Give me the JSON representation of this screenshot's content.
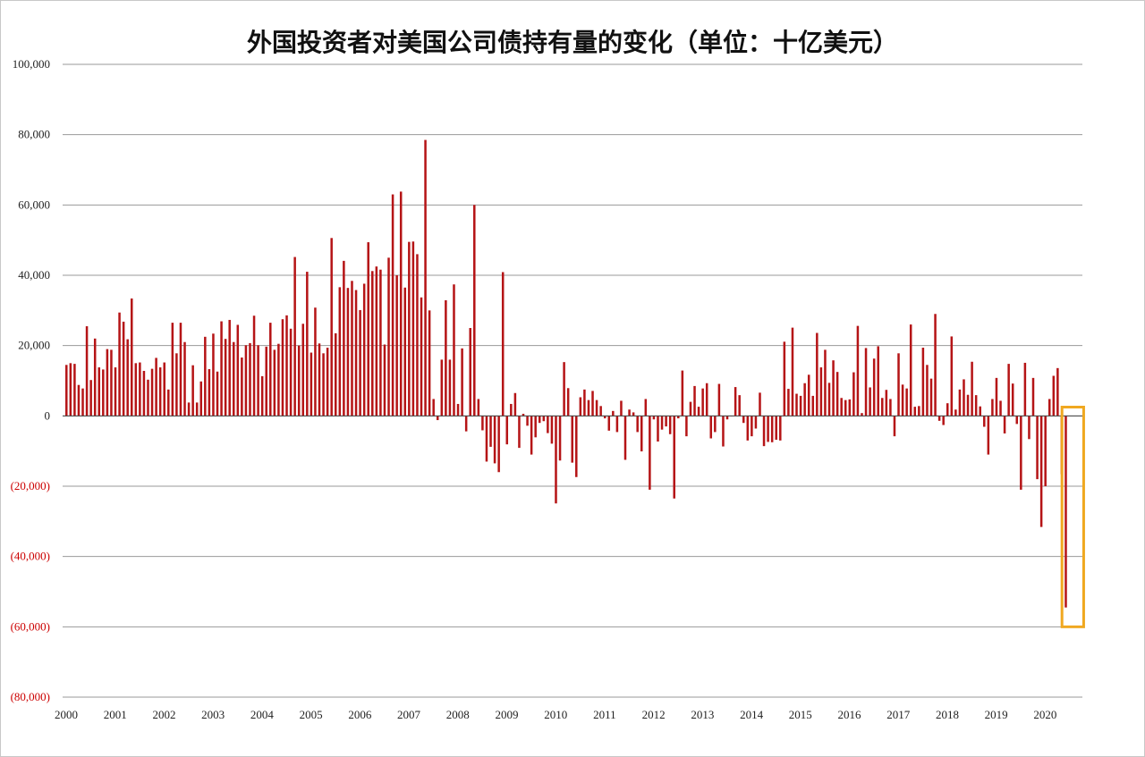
{
  "chart_data": {
    "type": "bar",
    "title": "外国投资者对美国公司债持有量的变化（单位：十亿美元）",
    "xlabel": "",
    "ylabel": "",
    "ylim": [
      -80000,
      100000
    ],
    "y_ticks": [
      100000,
      80000,
      60000,
      40000,
      20000,
      0,
      -20000,
      -40000,
      -60000,
      -80000
    ],
    "y_tick_labels": [
      "100,000",
      "80,000",
      "60,000",
      "40,000",
      "20,000",
      "0",
      "(20,000)",
      "(40,000)",
      "(60,000)",
      "(80,000)"
    ],
    "x_tick_labels": [
      "2000",
      "2001",
      "2002",
      "2003",
      "2004",
      "2005",
      "2006",
      "2007",
      "2008",
      "2009",
      "2010",
      "2011",
      "2012",
      "2013",
      "2014",
      "2015",
      "2016",
      "2017",
      "2018",
      "2019",
      "2020"
    ],
    "grid": true,
    "legend": "none",
    "colors": {
      "bar": "#b51416",
      "negative_label": "#cc0000",
      "positive_label": "#222222",
      "highlight": "#f0a820"
    },
    "highlight_range": {
      "from_index": 245,
      "to_index": 248,
      "ylim": [
        -60000,
        2500
      ]
    },
    "series": [
      {
        "values": [
          14500,
          15000,
          14800,
          8800,
          7800,
          25500,
          10200,
          22000,
          13800,
          13200,
          19000,
          18800,
          13800,
          29400,
          26800,
          21800,
          33400,
          15000,
          15200,
          12800,
          10300,
          13400,
          16500,
          13800,
          15200,
          7500,
          26500,
          17800,
          26500,
          21000,
          3800,
          14400,
          3800,
          9800,
          22500,
          13300,
          23400,
          12600,
          26900,
          21900,
          27300,
          21000,
          25900,
          16600,
          20100,
          20700,
          28500,
          20100,
          11300,
          19700,
          26500,
          18800,
          20500,
          27500,
          28600,
          24800,
          45200,
          20000,
          26200,
          41000,
          18000,
          30800,
          20600,
          17800,
          19400,
          50600,
          23500,
          36600,
          44100,
          36400,
          38400,
          35800,
          30100,
          37600,
          49400,
          41200,
          42500,
          41600,
          20300,
          45000,
          63000,
          40000,
          63800,
          36500,
          49500,
          49600,
          46000,
          33700,
          78500,
          30000,
          4800,
          -1200,
          16000,
          32900,
          16000,
          37400,
          3400,
          19200,
          -4400,
          25000,
          60000,
          4800,
          -4100,
          -13000,
          -8800,
          -13500,
          -16000,
          40900,
          -8100,
          3400,
          6500,
          -9100,
          600,
          -2800,
          -11000,
          -6100,
          -2000,
          -1500,
          -4900,
          -7900,
          -24900,
          -12700,
          15300,
          7900,
          -13300,
          -17400,
          5300,
          7500,
          4500,
          7100,
          4500,
          2800,
          -700,
          -4200,
          1400,
          -4600,
          4300,
          -12500,
          1800,
          1000,
          -4600,
          -10100,
          4800,
          -21000,
          -1000,
          -7300,
          -3900,
          -3000,
          -5200,
          -23500,
          -700,
          12900,
          -5800,
          4000,
          8500,
          2600,
          7800,
          9300,
          -6400,
          -4600,
          9100,
          -8700,
          -1000,
          -100,
          8200,
          5900,
          -2000,
          -7000,
          -5800,
          -3600,
          6600,
          -8600,
          -7400,
          -7500,
          -6800,
          -7000,
          21100,
          7700,
          25100,
          6300,
          5700,
          9300,
          11700,
          5700,
          23600,
          13800,
          18800,
          9400,
          15800,
          12500,
          5100,
          4500,
          4700,
          12400,
          25600,
          800,
          19300,
          8100,
          16300,
          19800,
          5100,
          7400,
          4800,
          -5800,
          17800,
          8900,
          7800,
          26000,
          2600,
          2800,
          19400,
          14500,
          10600,
          29000,
          -1400,
          -2600,
          3600,
          22600,
          1800,
          7500,
          10400,
          6000,
          15400,
          5900,
          2700,
          -3100,
          -11000,
          4800,
          10800,
          4300,
          -5000,
          14800,
          9200,
          -2300,
          -21000,
          15100,
          -6600,
          10800,
          -18000,
          -31600,
          -20000,
          4800,
          11400,
          13600,
          -16600,
          -54500
        ]
      }
    ]
  }
}
